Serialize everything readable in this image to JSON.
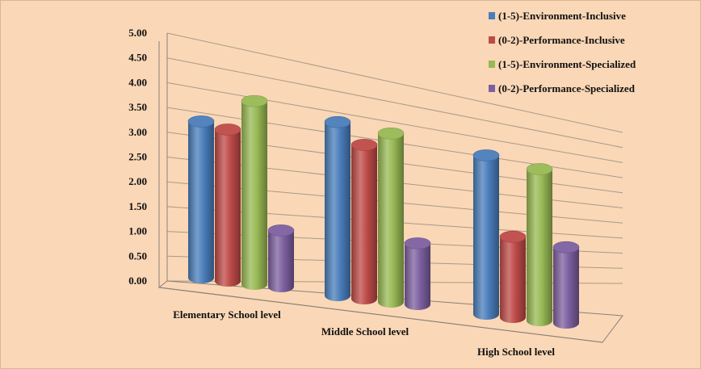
{
  "chart_data": {
    "type": "bar",
    "categories": [
      "Elementary School level",
      "Middle School level",
      "High School level"
    ],
    "series": [
      {
        "name": "(1-5)-Environment-Inclusive",
        "values": [
          3.2,
          3.55,
          3.25
        ],
        "color": "#4a7ebb"
      },
      {
        "name": "(0-2)-Performance-Inclusive",
        "values": [
          3.1,
          3.15,
          1.65
        ],
        "color": "#be4b48"
      },
      {
        "name": "(1-5)-Environment-Specialized",
        "values": [
          3.75,
          3.45,
          3.1
        ],
        "color": "#98b954"
      },
      {
        "name": "(0-2)-Performance-Specialized",
        "values": [
          1.15,
          1.25,
          1.55
        ],
        "color": "#7d60a0"
      }
    ],
    "ylim": [
      0,
      5
    ],
    "yticks": [
      "0.00",
      "0.50",
      "1.00",
      "1.50",
      "2.00",
      "2.50",
      "3.00",
      "3.50",
      "4.00",
      "4.50",
      "5.00"
    ],
    "grid": true,
    "legend_position": "top-right",
    "style": "3d-cylinder"
  }
}
